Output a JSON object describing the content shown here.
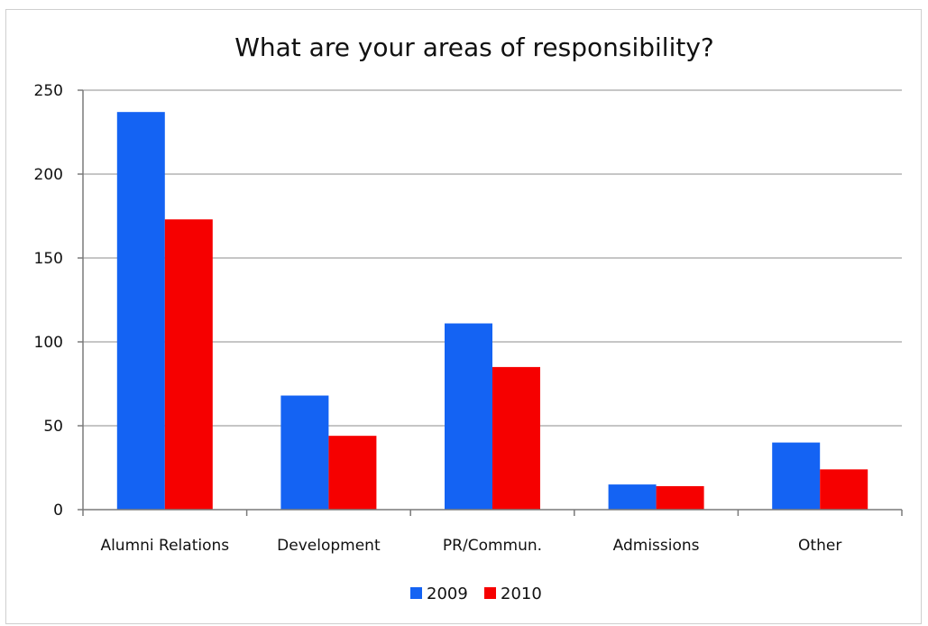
{
  "chart_data": {
    "type": "bar",
    "title": "What are your areas of responsibility?",
    "xlabel": "",
    "ylabel": "",
    "categories": [
      "Alumni Relations",
      "Development",
      "PR/Commun.",
      "Admissions",
      "Other"
    ],
    "series": [
      {
        "name": "2009",
        "color": "#1463f3",
        "values": [
          237,
          68,
          111,
          15,
          40
        ]
      },
      {
        "name": "2010",
        "color": "#f60000",
        "values": [
          173,
          44,
          85,
          14,
          24
        ]
      }
    ],
    "ylim": [
      0,
      250
    ],
    "yticks": [
      "0",
      "50",
      "100",
      "150",
      "200",
      "250"
    ],
    "grid": true,
    "legend_position": "bottom"
  }
}
